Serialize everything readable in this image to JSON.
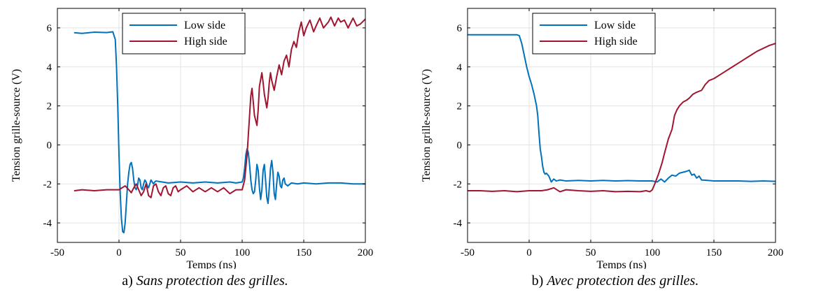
{
  "figure": {
    "panels": [
      {
        "caption_prefix": "a)",
        "caption_text": "Sans protection des grilles."
      },
      {
        "caption_prefix": "b)",
        "caption_text": "Avec protection des grilles."
      }
    ]
  },
  "chart_data": [
    {
      "type": "line",
      "xlabel": "Temps (ns)",
      "ylabel": "Tension grille-source (V)",
      "xlim": [
        -50,
        200
      ],
      "ylim": [
        -5,
        7
      ],
      "xticks": [
        -50,
        0,
        50,
        100,
        150,
        200
      ],
      "yticks": [
        -4,
        -2,
        0,
        2,
        4,
        6
      ],
      "xtick_labels": [
        "-50",
        "0",
        "50",
        "100",
        "150",
        "200"
      ],
      "ytick_labels": [
        "-4",
        "-2",
        "0",
        "2",
        "4",
        "6"
      ],
      "grid": true,
      "legend_position": "top-center",
      "series": [
        {
          "name": "Low side",
          "color": "#0072BD",
          "x": [
            -36,
            -30,
            -20,
            -10,
            -5,
            -3,
            -2,
            -1,
            0,
            1,
            2,
            3,
            4,
            5,
            6,
            7,
            8,
            9,
            10,
            11,
            12,
            13,
            14,
            15,
            16,
            17,
            18,
            19,
            20,
            21,
            22,
            23,
            24,
            25,
            26,
            27,
            28,
            29,
            30,
            35,
            40,
            50,
            60,
            70,
            80,
            90,
            95,
            100,
            101,
            102,
            103,
            104,
            105,
            106,
            107,
            108,
            109,
            110,
            111,
            112,
            113,
            114,
            115,
            116,
            117,
            118,
            119,
            120,
            121,
            122,
            123,
            124,
            125,
            126,
            127,
            128,
            129,
            130,
            131,
            132,
            133,
            134,
            135,
            137,
            140,
            145,
            150,
            160,
            170,
            180,
            190,
            200
          ],
          "y": [
            5.75,
            5.72,
            5.78,
            5.76,
            5.8,
            5.4,
            4.0,
            2.0,
            -0.5,
            -2.5,
            -3.8,
            -4.45,
            -4.5,
            -4.0,
            -3.0,
            -2.0,
            -1.4,
            -1.0,
            -0.9,
            -1.2,
            -1.8,
            -2.2,
            -2.3,
            -2.1,
            -1.7,
            -1.8,
            -2.2,
            -2.3,
            -2.0,
            -1.8,
            -1.9,
            -2.1,
            -2.2,
            -2.0,
            -1.8,
            -1.9,
            -2.0,
            -1.9,
            -1.85,
            -1.9,
            -1.95,
            -1.9,
            -1.95,
            -1.9,
            -1.95,
            -1.9,
            -1.95,
            -1.9,
            -1.7,
            -1.2,
            -0.5,
            -0.2,
            -0.4,
            -1.0,
            -1.8,
            -2.3,
            -2.5,
            -2.4,
            -1.8,
            -1.0,
            -1.3,
            -2.2,
            -2.8,
            -2.3,
            -1.3,
            -1.0,
            -1.8,
            -2.7,
            -3.0,
            -2.2,
            -1.2,
            -0.8,
            -1.4,
            -2.5,
            -2.8,
            -2.0,
            -1.4,
            -1.6,
            -2.1,
            -2.2,
            -1.8,
            -1.7,
            -2.0,
            -2.1,
            -1.95,
            -2.0,
            -1.95,
            -2.0,
            -1.95,
            -1.95,
            -2.0,
            -2.0
          ]
        },
        {
          "name": "High side",
          "color": "#A2142F",
          "x": [
            -36,
            -30,
            -20,
            -10,
            0,
            5,
            8,
            10,
            12,
            14,
            16,
            18,
            20,
            22,
            24,
            26,
            28,
            30,
            32,
            34,
            36,
            38,
            40,
            42,
            44,
            46,
            48,
            50,
            55,
            60,
            65,
            70,
            75,
            80,
            85,
            90,
            95,
            100,
            102,
            104,
            105,
            106,
            107,
            108,
            110,
            112,
            113,
            114,
            116,
            117,
            118,
            120,
            121,
            122,
            123,
            124,
            126,
            128,
            129,
            130,
            132,
            134,
            136,
            138,
            140,
            142,
            144,
            146,
            148,
            150,
            152,
            155,
            158,
            160,
            163,
            166,
            170,
            172,
            175,
            178,
            180,
            183,
            186,
            190,
            193,
            196,
            200
          ],
          "y": [
            -2.35,
            -2.3,
            -2.35,
            -2.3,
            -2.3,
            -2.1,
            -2.3,
            -2.45,
            -2.2,
            -2.0,
            -2.3,
            -2.6,
            -2.4,
            -2.0,
            -2.6,
            -2.7,
            -2.1,
            -2.0,
            -2.4,
            -2.6,
            -2.2,
            -2.1,
            -2.5,
            -2.6,
            -2.2,
            -2.1,
            -2.4,
            -2.3,
            -2.1,
            -2.4,
            -2.2,
            -2.4,
            -2.2,
            -2.4,
            -2.2,
            -2.5,
            -2.3,
            -2.3,
            -1.8,
            -0.5,
            0.5,
            1.5,
            2.5,
            2.9,
            1.5,
            1.0,
            1.8,
            3.0,
            3.7,
            3.2,
            2.6,
            1.9,
            2.4,
            3.2,
            3.7,
            3.3,
            2.8,
            3.5,
            3.8,
            4.1,
            3.6,
            4.3,
            4.6,
            4.0,
            4.9,
            5.3,
            5.0,
            5.8,
            6.3,
            5.6,
            6.0,
            6.4,
            5.8,
            6.1,
            6.5,
            6.0,
            6.3,
            6.55,
            6.1,
            6.5,
            6.3,
            6.4,
            6.0,
            6.5,
            6.1,
            6.2,
            6.45
          ]
        }
      ]
    },
    {
      "type": "line",
      "xlabel": "Temps (ns)",
      "ylabel": "Tension grille-source (V)",
      "xlim": [
        -50,
        200
      ],
      "ylim": [
        -5,
        7
      ],
      "xticks": [
        -50,
        0,
        50,
        100,
        150,
        200
      ],
      "yticks": [
        -4,
        -2,
        0,
        2,
        4,
        6
      ],
      "xtick_labels": [
        "-50",
        "0",
        "50",
        "100",
        "150",
        "200"
      ],
      "ytick_labels": [
        "-4",
        "-2",
        "0",
        "2",
        "4",
        "6"
      ],
      "grid": true,
      "legend_position": "top-center",
      "series": [
        {
          "name": "Low side",
          "color": "#0072BD",
          "x": [
            -50,
            -40,
            -30,
            -20,
            -10,
            -8,
            -6,
            -4,
            -2,
            0,
            2,
            4,
            6,
            7,
            8,
            9,
            10,
            11,
            12,
            13,
            14,
            16,
            18,
            20,
            22,
            25,
            30,
            40,
            50,
            60,
            70,
            80,
            90,
            100,
            104,
            107,
            110,
            113,
            116,
            119,
            122,
            125,
            128,
            130,
            132,
            134,
            136,
            138,
            140,
            145,
            150,
            160,
            170,
            180,
            190,
            200
          ],
          "y": [
            5.65,
            5.65,
            5.65,
            5.65,
            5.65,
            5.6,
            5.2,
            4.6,
            4.0,
            3.5,
            3.1,
            2.6,
            2.0,
            1.5,
            0.6,
            -0.2,
            -0.6,
            -1.1,
            -1.4,
            -1.5,
            -1.45,
            -1.6,
            -1.9,
            -1.75,
            -1.85,
            -1.8,
            -1.85,
            -1.82,
            -1.85,
            -1.82,
            -1.85,
            -1.83,
            -1.85,
            -1.85,
            -1.9,
            -1.75,
            -1.9,
            -1.7,
            -1.55,
            -1.6,
            -1.45,
            -1.4,
            -1.35,
            -1.3,
            -1.55,
            -1.5,
            -1.7,
            -1.6,
            -1.8,
            -1.82,
            -1.85,
            -1.85,
            -1.85,
            -1.87,
            -1.85,
            -1.87
          ]
        },
        {
          "name": "High side",
          "color": "#A2142F",
          "x": [
            -50,
            -40,
            -30,
            -20,
            -10,
            0,
            10,
            15,
            20,
            25,
            30,
            40,
            50,
            60,
            70,
            80,
            90,
            95,
            98,
            100,
            102,
            105,
            108,
            110,
            113,
            116,
            118,
            120,
            122,
            125,
            128,
            130,
            133,
            136,
            140,
            143,
            146,
            150,
            155,
            160,
            165,
            170,
            175,
            180,
            185,
            190,
            195,
            200
          ],
          "y": [
            -2.35,
            -2.35,
            -2.38,
            -2.35,
            -2.4,
            -2.35,
            -2.35,
            -2.3,
            -2.2,
            -2.4,
            -2.3,
            -2.35,
            -2.38,
            -2.35,
            -2.4,
            -2.38,
            -2.4,
            -2.35,
            -2.4,
            -2.3,
            -2.0,
            -1.5,
            -0.9,
            -0.4,
            0.3,
            0.8,
            1.5,
            1.8,
            2.0,
            2.2,
            2.3,
            2.4,
            2.6,
            2.7,
            2.8,
            3.1,
            3.3,
            3.4,
            3.6,
            3.8,
            4.0,
            4.2,
            4.4,
            4.6,
            4.8,
            4.95,
            5.1,
            5.2
          ]
        }
      ]
    }
  ]
}
